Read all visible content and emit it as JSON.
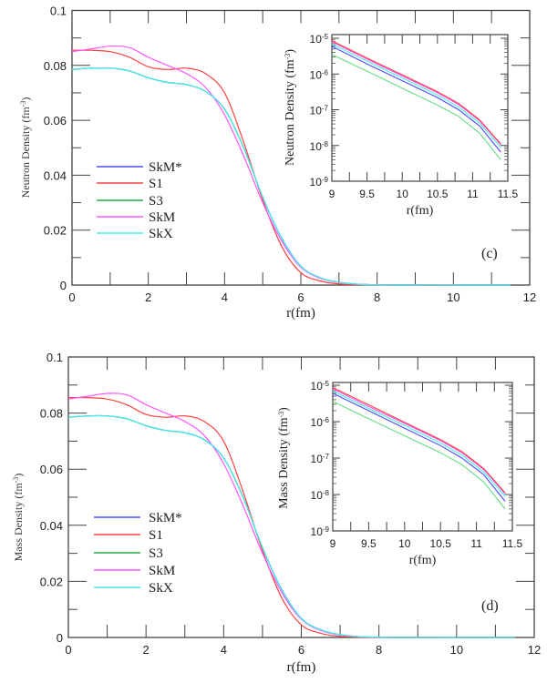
{
  "chart_data": [
    {
      "panel": "(c)",
      "type": "line",
      "xlabel": "r(fm)",
      "ylabel": "Neutron Density (fm",
      "ylabel_sup": "-3",
      "ylabel_end": ")",
      "xlim": [
        0,
        12
      ],
      "ylim": [
        0,
        0.1
      ],
      "xtick_labels": [
        "0",
        "2",
        "4",
        "6",
        "8",
        "10",
        "12"
      ],
      "ytick_labels": [
        "0",
        "0.02",
        "0.04",
        "0.06",
        "0.08",
        "0.1"
      ],
      "legend_position": "center-left",
      "x": [
        0,
        0.5,
        1,
        1.5,
        2,
        2.5,
        3,
        3.5,
        4,
        4.5,
        5,
        5.5,
        6,
        6.5,
        7,
        7.5,
        8,
        8.5,
        11.5
      ],
      "series": [
        {
          "name": "SkM*",
          "color": "#4a4aff",
          "values": [
            0.0785,
            0.079,
            0.079,
            0.078,
            0.0755,
            0.0738,
            0.073,
            0.0705,
            0.064,
            0.05,
            0.032,
            0.017,
            0.0068,
            0.0027,
            0.001,
            0.0003,
            0.0001,
            0,
            0
          ]
        },
        {
          "name": "S1",
          "color": "#ff4040",
          "values": [
            0.0855,
            0.0855,
            0.085,
            0.083,
            0.0795,
            0.0785,
            0.079,
            0.077,
            0.07,
            0.052,
            0.031,
            0.014,
            0.0045,
            0.0015,
            0.0004,
            0.0001,
            0,
            0,
            0
          ]
        },
        {
          "name": "S3",
          "color": "#22aa44",
          "values": [
            0.0785,
            0.079,
            0.079,
            0.078,
            0.0755,
            0.0738,
            0.073,
            0.0705,
            0.064,
            0.05,
            0.032,
            0.017,
            0.0068,
            0.0027,
            0.001,
            0.0003,
            0.0001,
            0,
            0
          ]
        },
        {
          "name": "SkM",
          "color": "#ff55ff",
          "values": [
            0.085,
            0.086,
            0.087,
            0.0865,
            0.083,
            0.08,
            0.077,
            0.072,
            0.062,
            0.047,
            0.03,
            0.016,
            0.0065,
            0.0025,
            0.0009,
            0.0003,
            0.0001,
            0,
            0
          ]
        },
        {
          "name": "SkX",
          "color": "#44eeee",
          "values": [
            0.0785,
            0.079,
            0.079,
            0.078,
            0.0755,
            0.0738,
            0.073,
            0.0705,
            0.064,
            0.05,
            0.032,
            0.017,
            0.0068,
            0.0027,
            0.001,
            0.0003,
            0.0001,
            0,
            0
          ]
        }
      ],
      "inset": {
        "type": "line",
        "yscale": "log",
        "xlabel": "r(fm)",
        "ylabel": "Neutron Density (fm",
        "ylabel_sup": "-3",
        "ylabel_end": ")",
        "xlim": [
          9,
          11.5
        ],
        "ylim": [
          1e-09,
          1e-05
        ],
        "xtick_labels": [
          "9",
          "9.5",
          "10",
          "10.5",
          "11",
          "11.5"
        ],
        "ytick_base": "10",
        "ytick_exponents": [
          "-9",
          "-8",
          "-7",
          "-6",
          "-5"
        ],
        "x": [
          9,
          9.5,
          10,
          10.5,
          10.8,
          11.1,
          11.4
        ],
        "series": [
          {
            "name": "S3",
            "color": "#66dd88",
            "values": [
              3.5e-06,
              1.2e-06,
              4e-07,
              1.35e-07,
              6.5e-08,
              2.2e-08,
              4e-09
            ]
          },
          {
            "name": "SkM*",
            "color": "#4a4aff",
            "values": [
              6e-06,
              1.9e-06,
              6.5e-07,
              2.2e-07,
              1e-07,
              3.5e-08,
              6.5e-09
            ]
          },
          {
            "name": "SkX",
            "color": "#44eeee",
            "values": [
              7e-06,
              2.3e-06,
              7.8e-07,
              2.6e-07,
              1.2e-07,
              4.2e-08,
              9e-09
            ]
          },
          {
            "name": "SkM",
            "color": "#ff55ff",
            "values": [
              8e-06,
              2.6e-06,
              8.8e-07,
              3e-07,
              1.4e-07,
              4.9e-08,
              1.05e-08
            ]
          },
          {
            "name": "S1",
            "color": "#ff4040",
            "values": [
              8.5e-06,
              2.8e-06,
              9.5e-07,
              3.2e-07,
              1.5e-07,
              5.2e-08,
              1.1e-08
            ]
          }
        ]
      }
    },
    {
      "panel": "(d)",
      "type": "line",
      "xlabel": "r(fm)",
      "ylabel": "Mass Density (fm",
      "ylabel_sup": "-3",
      "ylabel_end": ")",
      "xlim": [
        0,
        12
      ],
      "ylim": [
        0,
        0.1
      ],
      "xtick_labels": [
        "0",
        "2",
        "4",
        "6",
        "8",
        "10",
        "12"
      ],
      "ytick_labels": [
        "0",
        "0.02",
        "0.04",
        "0.06",
        "0.08",
        "0.1"
      ],
      "legend_position": "center-left",
      "x": [
        0,
        0.5,
        1,
        1.5,
        2,
        2.5,
        3,
        3.5,
        4,
        4.5,
        5,
        5.5,
        6,
        6.5,
        7,
        7.5,
        8,
        8.5,
        11.5
      ],
      "series": [
        {
          "name": "SkM*",
          "color": "#4a4aff",
          "values": [
            0.0785,
            0.079,
            0.079,
            0.078,
            0.0755,
            0.0738,
            0.073,
            0.0705,
            0.064,
            0.05,
            0.032,
            0.017,
            0.0068,
            0.0027,
            0.001,
            0.0003,
            0.0001,
            0,
            0
          ]
        },
        {
          "name": "S1",
          "color": "#ff4040",
          "values": [
            0.0855,
            0.0855,
            0.085,
            0.083,
            0.0795,
            0.0785,
            0.079,
            0.077,
            0.07,
            0.052,
            0.031,
            0.014,
            0.0045,
            0.0015,
            0.0004,
            0.0001,
            0,
            0,
            0
          ]
        },
        {
          "name": "S3",
          "color": "#22aa44",
          "values": [
            0.0785,
            0.079,
            0.079,
            0.078,
            0.0755,
            0.0738,
            0.073,
            0.0705,
            0.064,
            0.05,
            0.032,
            0.017,
            0.0068,
            0.0027,
            0.001,
            0.0003,
            0.0001,
            0,
            0
          ]
        },
        {
          "name": "SkM",
          "color": "#ff55ff",
          "values": [
            0.085,
            0.086,
            0.087,
            0.0865,
            0.083,
            0.08,
            0.077,
            0.072,
            0.062,
            0.047,
            0.03,
            0.016,
            0.0065,
            0.0025,
            0.0009,
            0.0003,
            0.0001,
            0,
            0
          ]
        },
        {
          "name": "SkX",
          "color": "#44eeee",
          "values": [
            0.0785,
            0.079,
            0.079,
            0.078,
            0.0755,
            0.0738,
            0.073,
            0.0705,
            0.064,
            0.05,
            0.032,
            0.017,
            0.0068,
            0.0027,
            0.001,
            0.0003,
            0.0001,
            0,
            0
          ]
        }
      ],
      "inset": {
        "type": "line",
        "yscale": "log",
        "xlabel": "r(fm)",
        "ylabel": "Mass Density (fm",
        "ylabel_sup": "-3",
        "ylabel_end": ")",
        "xlim": [
          9,
          11.5
        ],
        "ylim": [
          1e-09,
          1e-05
        ],
        "xtick_labels": [
          "9",
          "9.5",
          "10",
          "10.5",
          "11",
          "11.5"
        ],
        "ytick_base": "10",
        "ytick_exponents": [
          "-9",
          "-8",
          "-7",
          "-6",
          "-5"
        ],
        "x": [
          9,
          9.5,
          10,
          10.5,
          10.8,
          11.1,
          11.4
        ],
        "series": [
          {
            "name": "S3",
            "color": "#66dd88",
            "values": [
              3.6e-06,
              1.2e-06,
              4.1e-07,
              1.4e-07,
              6.6e-08,
              2.2e-08,
              4e-09
            ]
          },
          {
            "name": "SkM*",
            "color": "#4a4aff",
            "values": [
              6e-06,
              2e-06,
              6.6e-07,
              2.2e-07,
              1e-07,
              3.5e-08,
              6.5e-09
            ]
          },
          {
            "name": "SkX",
            "color": "#44eeee",
            "values": [
              7e-06,
              2.3e-06,
              7.8e-07,
              2.6e-07,
              1.2e-07,
              4.2e-08,
              9e-09
            ]
          },
          {
            "name": "SkM",
            "color": "#ff55ff",
            "values": [
              8e-06,
              2.6e-06,
              8.9e-07,
              3e-07,
              1.4e-07,
              4.9e-08,
              1.05e-08
            ]
          },
          {
            "name": "S1",
            "color": "#ff4040",
            "values": [
              8.6e-06,
              2.9e-06,
              9.6e-07,
              3.2e-07,
              1.5e-07,
              5.2e-08,
              1.1e-08
            ]
          }
        ]
      }
    }
  ]
}
